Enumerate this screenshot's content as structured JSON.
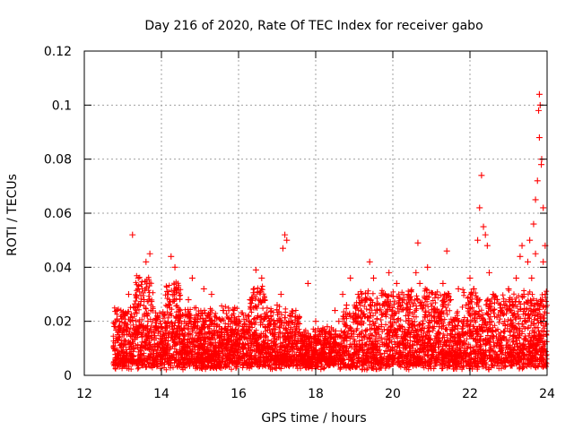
{
  "chart_data": {
    "type": "scatter",
    "title": "Day 216 of 2020, Rate Of TEC Index for receiver gabo",
    "xlabel": "GPS time / hours",
    "ylabel": "ROTI / TECUs",
    "xlim": [
      12,
      24
    ],
    "ylim": [
      0,
      0.12
    ],
    "x_ticks": [
      12,
      14,
      16,
      18,
      20,
      22,
      24
    ],
    "x_tick_labels": [
      "12",
      "14",
      "16",
      "18",
      "20",
      "22",
      "24"
    ],
    "y_ticks": [
      0,
      0.02,
      0.04,
      0.06,
      0.08,
      0.1,
      0.12
    ],
    "y_tick_labels": [
      "0",
      "0.02",
      "0.04",
      "0.06",
      "0.08",
      "0.1",
      "0.12"
    ],
    "grid": true,
    "marker": "+",
    "color": "#ff0000",
    "series": [
      {
        "name": "ROTI",
        "points": [
          [
            12.8,
            0.004
          ],
          [
            12.8,
            0.012
          ],
          [
            12.85,
            0.024
          ],
          [
            12.9,
            0.018
          ],
          [
            12.95,
            0.008
          ],
          [
            13.0,
            0.015
          ],
          [
            13.05,
            0.022
          ],
          [
            13.1,
            0.006
          ],
          [
            13.15,
            0.03
          ],
          [
            13.2,
            0.012
          ],
          [
            13.25,
            0.052
          ],
          [
            13.3,
            0.025
          ],
          [
            13.35,
            0.018
          ],
          [
            13.4,
            0.036
          ],
          [
            13.45,
            0.01
          ],
          [
            13.5,
            0.032
          ],
          [
            13.55,
            0.028
          ],
          [
            13.6,
            0.042
          ],
          [
            13.65,
            0.02
          ],
          [
            13.7,
            0.045
          ],
          [
            13.75,
            0.014
          ],
          [
            13.8,
            0.008
          ],
          [
            13.9,
            0.022
          ],
          [
            14.0,
            0.018
          ],
          [
            14.1,
            0.012
          ],
          [
            14.2,
            0.026
          ],
          [
            14.25,
            0.044
          ],
          [
            14.3,
            0.03
          ],
          [
            14.35,
            0.04
          ],
          [
            14.4,
            0.016
          ],
          [
            14.5,
            0.022
          ],
          [
            14.6,
            0.01
          ],
          [
            14.7,
            0.028
          ],
          [
            14.8,
            0.036
          ],
          [
            14.9,
            0.02
          ],
          [
            15.0,
            0.014
          ],
          [
            15.1,
            0.032
          ],
          [
            15.2,
            0.022
          ],
          [
            15.3,
            0.03
          ],
          [
            15.4,
            0.012
          ],
          [
            15.5,
            0.018
          ],
          [
            15.6,
            0.024
          ],
          [
            15.7,
            0.008
          ],
          [
            15.8,
            0.02
          ],
          [
            15.9,
            0.016
          ],
          [
            16.0,
            0.02
          ],
          [
            16.1,
            0.01
          ],
          [
            16.2,
            0.018
          ],
          [
            16.3,
            0.028
          ],
          [
            16.4,
            0.032
          ],
          [
            16.45,
            0.039
          ],
          [
            16.5,
            0.022
          ],
          [
            16.6,
            0.036
          ],
          [
            16.7,
            0.014
          ],
          [
            16.8,
            0.02
          ],
          [
            16.9,
            0.012
          ],
          [
            17.0,
            0.026
          ],
          [
            17.1,
            0.03
          ],
          [
            17.15,
            0.047
          ],
          [
            17.2,
            0.052
          ],
          [
            17.25,
            0.05
          ],
          [
            17.3,
            0.02
          ],
          [
            17.4,
            0.014
          ],
          [
            17.5,
            0.018
          ],
          [
            17.6,
            0.01
          ],
          [
            17.7,
            0.016
          ],
          [
            17.8,
            0.034
          ],
          [
            17.9,
            0.012
          ],
          [
            18.0,
            0.02
          ],
          [
            18.1,
            0.016
          ],
          [
            18.2,
            0.008
          ],
          [
            18.3,
            0.018
          ],
          [
            18.4,
            0.014
          ],
          [
            18.5,
            0.024
          ],
          [
            18.6,
            0.02
          ],
          [
            18.7,
            0.03
          ],
          [
            18.8,
            0.026
          ],
          [
            18.9,
            0.036
          ],
          [
            19.0,
            0.022
          ],
          [
            19.1,
            0.03
          ],
          [
            19.2,
            0.02
          ],
          [
            19.3,
            0.028
          ],
          [
            19.4,
            0.042
          ],
          [
            19.5,
            0.036
          ],
          [
            19.6,
            0.024
          ],
          [
            19.7,
            0.018
          ],
          [
            19.8,
            0.03
          ],
          [
            19.9,
            0.038
          ],
          [
            20.0,
            0.022
          ],
          [
            20.1,
            0.034
          ],
          [
            20.2,
            0.026
          ],
          [
            20.3,
            0.016
          ],
          [
            20.4,
            0.03
          ],
          [
            20.5,
            0.02
          ],
          [
            20.6,
            0.038
          ],
          [
            20.65,
            0.049
          ],
          [
            20.7,
            0.034
          ],
          [
            20.8,
            0.026
          ],
          [
            20.9,
            0.04
          ],
          [
            21.0,
            0.022
          ],
          [
            21.1,
            0.03
          ],
          [
            21.2,
            0.018
          ],
          [
            21.3,
            0.034
          ],
          [
            21.4,
            0.046
          ],
          [
            21.5,
            0.028
          ],
          [
            21.6,
            0.02
          ],
          [
            21.7,
            0.032
          ],
          [
            21.8,
            0.016
          ],
          [
            21.9,
            0.026
          ],
          [
            22.0,
            0.036
          ],
          [
            22.1,
            0.032
          ],
          [
            22.2,
            0.05
          ],
          [
            22.25,
            0.062
          ],
          [
            22.3,
            0.074
          ],
          [
            22.35,
            0.055
          ],
          [
            22.4,
            0.052
          ],
          [
            22.45,
            0.048
          ],
          [
            22.5,
            0.038
          ],
          [
            22.6,
            0.03
          ],
          [
            22.7,
            0.028
          ],
          [
            22.8,
            0.024
          ],
          [
            22.9,
            0.02
          ],
          [
            23.0,
            0.032
          ],
          [
            23.1,
            0.026
          ],
          [
            23.2,
            0.036
          ],
          [
            23.3,
            0.044
          ],
          [
            23.35,
            0.048
          ],
          [
            23.4,
            0.03
          ],
          [
            23.5,
            0.042
          ],
          [
            23.55,
            0.05
          ],
          [
            23.6,
            0.036
          ],
          [
            23.65,
            0.056
          ],
          [
            23.7,
            0.045
          ],
          [
            23.75,
            0.072
          ],
          [
            23.8,
            0.088
          ],
          [
            23.85,
            0.078
          ],
          [
            23.9,
            0.062
          ],
          [
            23.95,
            0.048
          ],
          [
            23.8,
            0.104
          ],
          [
            23.82,
            0.1
          ],
          [
            23.78,
            0.098
          ],
          [
            23.86,
            0.08
          ],
          [
            23.9,
            0.042
          ],
          [
            23.95,
            0.03
          ],
          [
            23.7,
            0.065
          ]
        ]
      }
    ]
  }
}
